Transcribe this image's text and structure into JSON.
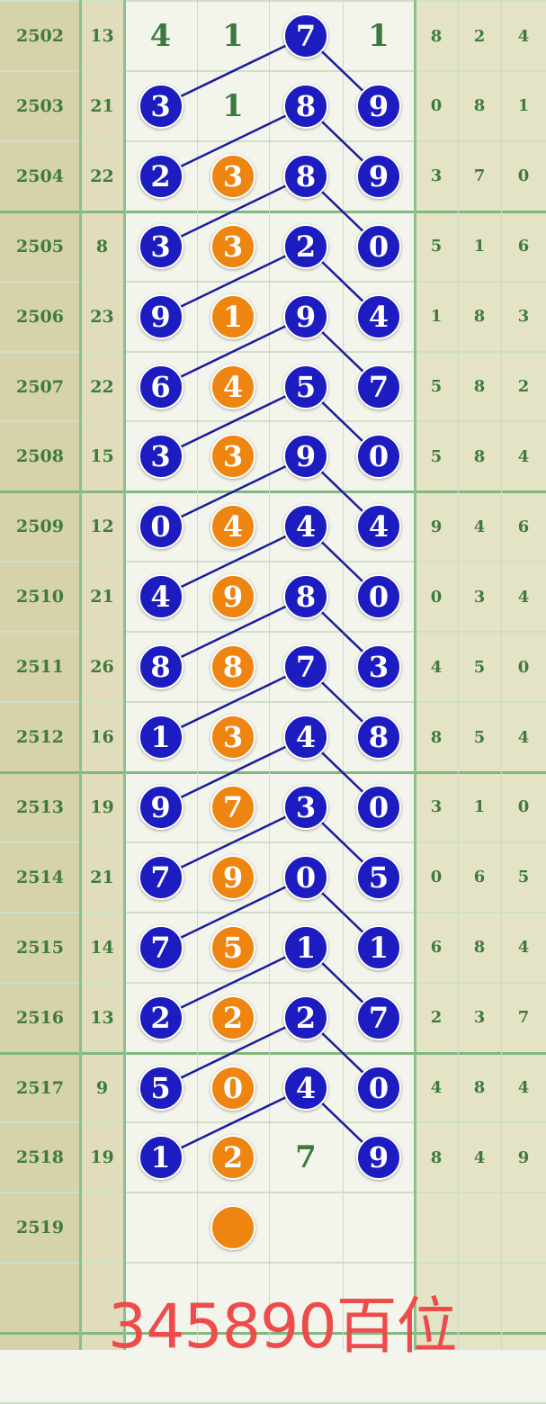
{
  "colors": {
    "blue_ball": "#1c1cc0",
    "orange_ball": "#ee8510",
    "text": "#3f7a3f",
    "caption": "#ee4b4b",
    "line": "#1c1c9c"
  },
  "rows": [
    {
      "period": "2502",
      "sum": "13",
      "d": [
        "4",
        "1",
        "7",
        "1"
      ],
      "ball": [
        false,
        false,
        true,
        false
      ],
      "tail": [
        "8",
        "2",
        "4"
      ]
    },
    {
      "period": "2503",
      "sum": "21",
      "d": [
        "3",
        "1",
        "8",
        "9"
      ],
      "ball": [
        true,
        false,
        true,
        true
      ],
      "tail": [
        "0",
        "8",
        "1"
      ]
    },
    {
      "period": "2504",
      "sum": "22",
      "d": [
        "2",
        "3",
        "8",
        "9"
      ],
      "ball": [
        true,
        true,
        true,
        true
      ],
      "tail": [
        "3",
        "7",
        "0"
      ]
    },
    {
      "period": "2505",
      "sum": "8",
      "d": [
        "3",
        "3",
        "2",
        "0"
      ],
      "ball": [
        true,
        true,
        true,
        true
      ],
      "tail": [
        "5",
        "1",
        "6"
      ]
    },
    {
      "period": "2506",
      "sum": "23",
      "d": [
        "9",
        "1",
        "9",
        "4"
      ],
      "ball": [
        true,
        true,
        true,
        true
      ],
      "tail": [
        "1",
        "8",
        "3"
      ]
    },
    {
      "period": "2507",
      "sum": "22",
      "d": [
        "6",
        "4",
        "5",
        "7"
      ],
      "ball": [
        true,
        true,
        true,
        true
      ],
      "tail": [
        "5",
        "8",
        "2"
      ]
    },
    {
      "period": "2508",
      "sum": "15",
      "d": [
        "3",
        "3",
        "9",
        "0"
      ],
      "ball": [
        true,
        true,
        true,
        true
      ],
      "tail": [
        "5",
        "8",
        "4"
      ]
    },
    {
      "period": "2509",
      "sum": "12",
      "d": [
        "0",
        "4",
        "4",
        "4"
      ],
      "ball": [
        true,
        true,
        true,
        true
      ],
      "tail": [
        "9",
        "4",
        "6"
      ]
    },
    {
      "period": "2510",
      "sum": "21",
      "d": [
        "4",
        "9",
        "8",
        "0"
      ],
      "ball": [
        true,
        true,
        true,
        true
      ],
      "tail": [
        "0",
        "3",
        "4"
      ]
    },
    {
      "period": "2511",
      "sum": "26",
      "d": [
        "8",
        "8",
        "7",
        "3"
      ],
      "ball": [
        true,
        true,
        true,
        true
      ],
      "tail": [
        "4",
        "5",
        "0"
      ]
    },
    {
      "period": "2512",
      "sum": "16",
      "d": [
        "1",
        "3",
        "4",
        "8"
      ],
      "ball": [
        true,
        true,
        true,
        true
      ],
      "tail": [
        "8",
        "5",
        "4"
      ]
    },
    {
      "period": "2513",
      "sum": "19",
      "d": [
        "9",
        "7",
        "3",
        "0"
      ],
      "ball": [
        true,
        true,
        true,
        true
      ],
      "tail": [
        "3",
        "1",
        "0"
      ]
    },
    {
      "period": "2514",
      "sum": "21",
      "d": [
        "7",
        "9",
        "0",
        "5"
      ],
      "ball": [
        true,
        true,
        true,
        true
      ],
      "tail": [
        "0",
        "6",
        "5"
      ]
    },
    {
      "period": "2515",
      "sum": "14",
      "d": [
        "7",
        "5",
        "1",
        "1"
      ],
      "ball": [
        true,
        true,
        true,
        true
      ],
      "tail": [
        "6",
        "8",
        "4"
      ]
    },
    {
      "period": "2516",
      "sum": "13",
      "d": [
        "2",
        "2",
        "2",
        "7"
      ],
      "ball": [
        true,
        true,
        true,
        true
      ],
      "tail": [
        "2",
        "3",
        "7"
      ]
    },
    {
      "period": "2517",
      "sum": "9",
      "d": [
        "5",
        "0",
        "4",
        "0"
      ],
      "ball": [
        true,
        true,
        true,
        true
      ],
      "tail": [
        "4",
        "8",
        "4"
      ]
    },
    {
      "period": "2518",
      "sum": "19",
      "d": [
        "1",
        "2",
        "7",
        "9"
      ],
      "ball": [
        true,
        true,
        false,
        true
      ],
      "tail": [
        "8",
        "4",
        "9"
      ]
    },
    {
      "period": "2519",
      "sum": "",
      "d": [
        "",
        "",
        "",
        ""
      ],
      "ball": [
        false,
        true,
        false,
        false
      ],
      "tail": [
        "",
        "",
        ""
      ]
    }
  ],
  "caption": "345890百位"
}
